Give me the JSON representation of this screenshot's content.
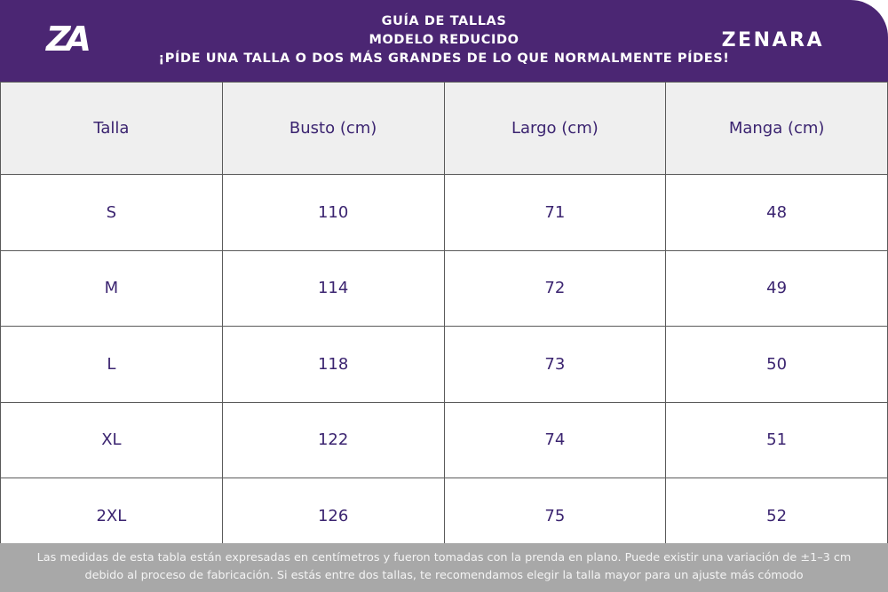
{
  "header": {
    "logo": "ZA",
    "lines": [
      "GUÍA DE TALLAS",
      "MODELO REDUCIDO",
      "¡PÍDE UNA TALLA O DOS MÁS GRANDES DE LO QUE NORMALMENTE PÍDES!"
    ],
    "brand": "ZENARA"
  },
  "table": {
    "columns": [
      "Talla",
      "Busto (cm)",
      "Largo (cm)",
      "Manga (cm)"
    ],
    "rows": [
      [
        "S",
        "110",
        "71",
        "48"
      ],
      [
        "M",
        "114",
        "72",
        "49"
      ],
      [
        "L",
        "118",
        "73",
        "50"
      ],
      [
        "XL",
        "122",
        "74",
        "51"
      ],
      [
        "2XL",
        "126",
        "75",
        "52"
      ]
    ]
  },
  "footer": {
    "lines": [
      "Las medidas de esta tabla están expresadas en centímetros y fueron tomadas con la prenda en plano. Puede existir una variación de ±1–3 cm",
      "debido al proceso de fabricación. Si estás entre dos tallas, te recomendamos elegir la talla mayor para un ajuste más cómodo"
    ]
  }
}
